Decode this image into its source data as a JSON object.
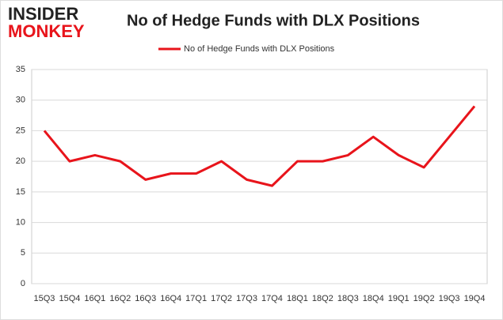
{
  "logo": {
    "line1": "INSIDER",
    "line2": "MONKEY"
  },
  "chart_data": {
    "type": "line",
    "title": "No of Hedge Funds with DLX Positions",
    "categories": [
      "15Q3",
      "15Q4",
      "16Q1",
      "16Q2",
      "16Q3",
      "16Q4",
      "17Q1",
      "17Q2",
      "17Q3",
      "17Q4",
      "18Q1",
      "18Q2",
      "18Q3",
      "18Q4",
      "19Q1",
      "19Q2",
      "19Q3",
      "19Q4"
    ],
    "series": [
      {
        "name": "No of Hedge Funds with DLX Positions",
        "color": "#e8141b",
        "values": [
          25,
          20,
          21,
          20,
          17,
          18,
          18,
          20,
          17,
          16,
          20,
          20,
          21,
          24,
          21,
          19,
          24,
          29
        ]
      }
    ],
    "ylim": [
      0,
      35
    ],
    "yticks": [
      0,
      5,
      10,
      15,
      20,
      25,
      30,
      35
    ],
    "grid": true,
    "legend": "top"
  }
}
